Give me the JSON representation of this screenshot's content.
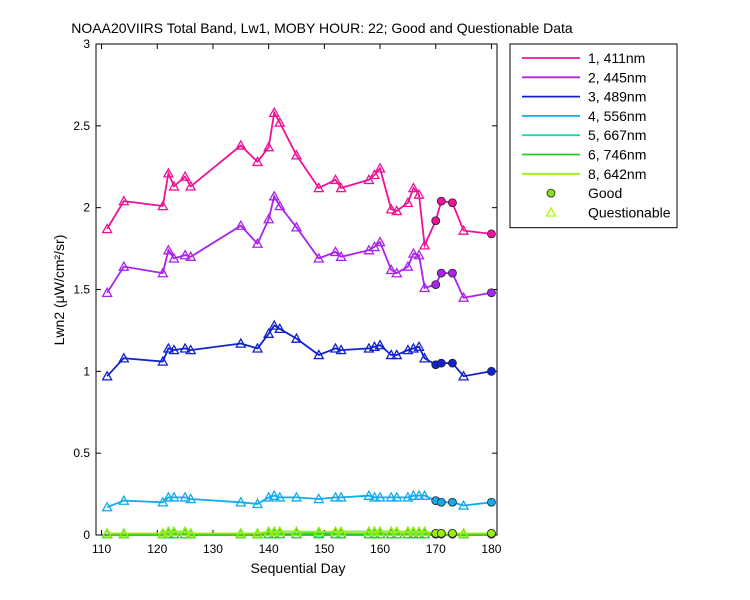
{
  "chart_data": {
    "type": "line",
    "title": "NOAA20VIIRS Total Band, Lw1, MOBY HOUR: 22;  Good and Questionable Data",
    "xlabel": "Sequential Day",
    "ylabel": "Lwn2 (μW/cm²/sr)",
    "xlim": [
      109,
      181
    ],
    "ylim": [
      0,
      3
    ],
    "xticks": [
      110,
      120,
      130,
      140,
      150,
      160,
      170,
      180
    ],
    "yticks": [
      0,
      0.5,
      1,
      1.5,
      2,
      2.5,
      3
    ],
    "xtick_labels": [
      "110",
      "120",
      "130",
      "140",
      "150",
      "160",
      "170",
      "180"
    ],
    "ytick_labels": [
      "0",
      "0.5",
      "1",
      "1.5",
      "2",
      "2.5",
      "3"
    ],
    "grid": false,
    "legend_position": "outside-top-right",
    "x": [
      111,
      114,
      121,
      122,
      123,
      125,
      126,
      135,
      138,
      140,
      141,
      142,
      145,
      149,
      152,
      153,
      158,
      159,
      160,
      162,
      163,
      165,
      166,
      167,
      168,
      170,
      171,
      173,
      175,
      180
    ],
    "quality": [
      "Q",
      "Q",
      "Q",
      "Q",
      "Q",
      "Q",
      "Q",
      "Q",
      "Q",
      "Q",
      "Q",
      "Q",
      "Q",
      "Q",
      "Q",
      "Q",
      "Q",
      "Q",
      "Q",
      "Q",
      "Q",
      "Q",
      "Q",
      "Q",
      "Q",
      "G",
      "G",
      "G",
      "Q",
      "G"
    ],
    "series": [
      {
        "name": "1, 411nm",
        "color": "#ee1199",
        "values": [
          1.87,
          2.04,
          2.01,
          2.21,
          2.13,
          2.19,
          2.13,
          2.38,
          2.28,
          2.37,
          2.58,
          2.52,
          2.32,
          2.12,
          2.17,
          2.12,
          2.17,
          2.2,
          2.24,
          1.99,
          1.98,
          2.03,
          2.12,
          2.08,
          1.77,
          1.92,
          2.04,
          2.03,
          1.86,
          1.84
        ]
      },
      {
        "name": "2, 445nm",
        "color": "#aa22ee",
        "values": [
          1.48,
          1.64,
          1.6,
          1.74,
          1.69,
          1.71,
          1.7,
          1.89,
          1.78,
          1.93,
          2.07,
          2.01,
          1.88,
          1.69,
          1.73,
          1.7,
          1.74,
          1.76,
          1.79,
          1.62,
          1.6,
          1.64,
          1.72,
          1.71,
          1.51,
          1.53,
          1.6,
          1.6,
          1.45,
          1.48
        ]
      },
      {
        "name": "3, 489nm",
        "color": "#1122cc",
        "values": [
          0.97,
          1.08,
          1.06,
          1.14,
          1.13,
          1.14,
          1.13,
          1.17,
          1.14,
          1.23,
          1.28,
          1.26,
          1.2,
          1.1,
          1.14,
          1.13,
          1.14,
          1.15,
          1.16,
          1.1,
          1.1,
          1.13,
          1.14,
          1.15,
          1.08,
          1.04,
          1.05,
          1.05,
          0.97,
          1.0
        ]
      },
      {
        "name": "4, 556nm",
        "color": "#11aaee",
        "values": [
          0.17,
          0.21,
          0.2,
          0.23,
          0.23,
          0.23,
          0.22,
          0.2,
          0.19,
          0.23,
          0.24,
          0.23,
          0.23,
          0.22,
          0.23,
          0.23,
          0.24,
          0.23,
          0.23,
          0.23,
          0.23,
          0.23,
          0.24,
          0.24,
          0.24,
          0.21,
          0.2,
          0.2,
          0.18,
          0.2
        ]
      },
      {
        "name": "5, 667nm",
        "color": "#11ddaa",
        "values": [
          0.01,
          0.01,
          0.01,
          0.02,
          0.02,
          0.02,
          0.01,
          0.01,
          0.01,
          0.02,
          0.02,
          0.02,
          0.02,
          0.01,
          0.02,
          0.02,
          0.02,
          0.02,
          0.02,
          0.02,
          0.02,
          0.02,
          0.02,
          0.02,
          0.02,
          0.01,
          0.01,
          0.01,
          0.01,
          0.01
        ]
      },
      {
        "name": "6, 746nm",
        "color": "#22cc22",
        "values": [
          0.005,
          0.005,
          0.005,
          0.005,
          0.005,
          0.005,
          0.005,
          0.005,
          0.005,
          0.005,
          0.005,
          0.005,
          0.005,
          0.005,
          0.005,
          0.005,
          0.005,
          0.005,
          0.005,
          0.005,
          0.005,
          0.005,
          0.005,
          0.005,
          0.005,
          0.005,
          0.005,
          0.005,
          0.005,
          0.005
        ]
      },
      {
        "name": "8, 642nm",
        "color": "#99ee11",
        "values": [
          0.01,
          0.01,
          0.01,
          0.02,
          0.02,
          0.02,
          0.01,
          0.01,
          0.01,
          0.02,
          0.02,
          0.02,
          0.02,
          0.02,
          0.02,
          0.02,
          0.02,
          0.02,
          0.02,
          0.02,
          0.02,
          0.02,
          0.02,
          0.02,
          0.02,
          0.01,
          0.01,
          0.01,
          0.01,
          0.01
        ]
      }
    ],
    "legend_markers": [
      {
        "label": "Good",
        "marker": "filled-circle",
        "color": "#88dd22"
      },
      {
        "label": "Questionable",
        "marker": "open-triangle",
        "color": "#aaff00"
      }
    ]
  }
}
